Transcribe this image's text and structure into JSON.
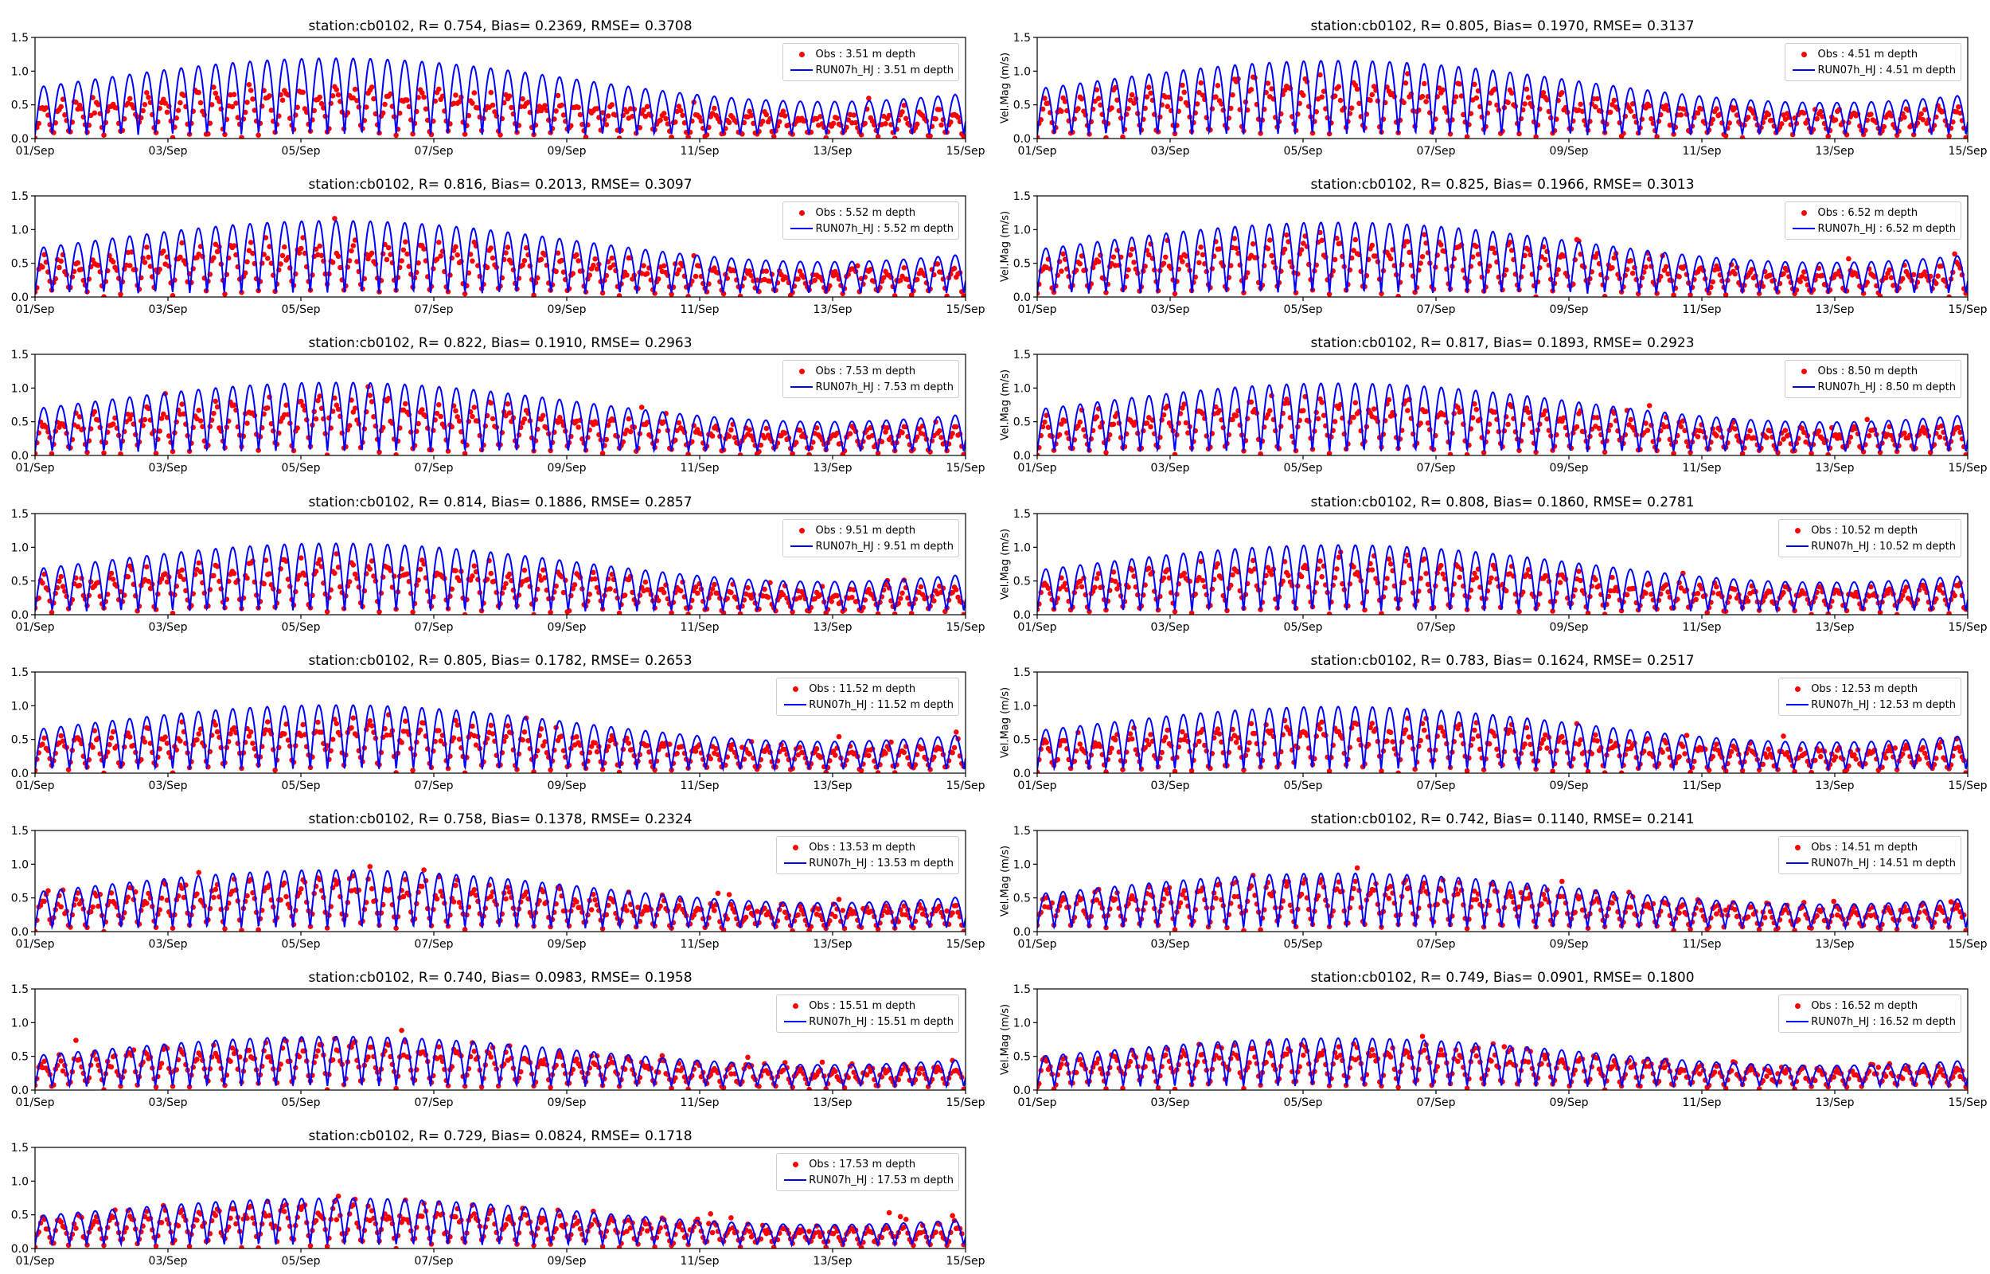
{
  "colors": {
    "obs": "#ff0000",
    "model": "#0000ff",
    "axis": "#000000"
  },
  "chart_data": [
    {
      "type": "scatter",
      "title": "station:cb0102, R= 0.754, Bias= 0.2369, RMSE= 0.3708",
      "ylabel": "",
      "ylim": [
        0,
        1.5
      ],
      "yticks": [
        "0.0",
        "0.5",
        "1.0",
        "1.5"
      ],
      "xticks": [
        "01/Sep",
        "03/Sep",
        "05/Sep",
        "07/Sep",
        "09/Sep",
        "11/Sep",
        "13/Sep",
        "15/Sep"
      ],
      "xlim": [
        "2000-09-01",
        "2000-09-15"
      ],
      "legend_position": "upper right",
      "series": [
        {
          "name": "Obs : 3.51 m depth",
          "kind": "points",
          "color": "#ff0000",
          "amp": 0.55
        },
        {
          "name": "RUN07h_HJ : 3.51 m depth",
          "kind": "line",
          "color": "#0000ff",
          "amp": 0.95
        }
      ]
    },
    {
      "type": "scatter",
      "title": "station:cb0102, R= 0.805, Bias= 0.1970, RMSE= 0.3137",
      "ylabel": "Vel.Mag (m/s)",
      "ylim": [
        0,
        1.5
      ],
      "yticks": [
        "0.0",
        "0.5",
        "1.0",
        "1.5"
      ],
      "xticks": [
        "01/Sep",
        "03/Sep",
        "05/Sep",
        "07/Sep",
        "09/Sep",
        "11/Sep",
        "13/Sep",
        "15/Sep"
      ],
      "xlim": [
        "2000-09-01",
        "2000-09-15"
      ],
      "legend_position": "upper right",
      "series": [
        {
          "name": "Obs : 4.51 m depth",
          "kind": "points",
          "color": "#ff0000",
          "amp": 0.62
        },
        {
          "name": "RUN07h_HJ : 4.51 m depth",
          "kind": "line",
          "color": "#0000ff",
          "amp": 0.92
        }
      ]
    },
    {
      "type": "scatter",
      "title": "station:cb0102, R= 0.816, Bias= 0.2013, RMSE= 0.3097",
      "ylabel": "",
      "ylim": [
        0,
        1.5
      ],
      "yticks": [
        "0.0",
        "0.5",
        "1.0",
        "1.5"
      ],
      "xticks": [
        "01/Sep",
        "03/Sep",
        "05/Sep",
        "07/Sep",
        "09/Sep",
        "11/Sep",
        "13/Sep",
        "15/Sep"
      ],
      "xlim": [
        "2000-09-01",
        "2000-09-15"
      ],
      "legend_position": "upper right",
      "series": [
        {
          "name": "Obs : 5.52 m depth",
          "kind": "points",
          "color": "#ff0000",
          "amp": 0.6
        },
        {
          "name": "RUN07h_HJ : 5.52 m depth",
          "kind": "line",
          "color": "#0000ff",
          "amp": 0.9
        }
      ]
    },
    {
      "type": "scatter",
      "title": "station:cb0102, R= 0.825, Bias= 0.1966, RMSE= 0.3013",
      "ylabel": "Vel.Mag (m/s)",
      "ylim": [
        0,
        1.5
      ],
      "yticks": [
        "0.0",
        "0.5",
        "1.0",
        "1.5"
      ],
      "xticks": [
        "01/Sep",
        "03/Sep",
        "05/Sep",
        "07/Sep",
        "09/Sep",
        "11/Sep",
        "13/Sep",
        "15/Sep"
      ],
      "xlim": [
        "2000-09-01",
        "2000-09-15"
      ],
      "legend_position": "upper right",
      "series": [
        {
          "name": "Obs : 6.52 m depth",
          "kind": "points",
          "color": "#ff0000",
          "amp": 0.62
        },
        {
          "name": "RUN07h_HJ : 6.52 m depth",
          "kind": "line",
          "color": "#0000ff",
          "amp": 0.88
        }
      ]
    },
    {
      "type": "scatter",
      "title": "station:cb0102, R= 0.822, Bias= 0.1910, RMSE= 0.2963",
      "ylabel": "",
      "ylim": [
        0,
        1.5
      ],
      "yticks": [
        "0.0",
        "0.5",
        "1.0",
        "1.5"
      ],
      "xticks": [
        "01/Sep",
        "03/Sep",
        "05/Sep",
        "07/Sep",
        "09/Sep",
        "11/Sep",
        "13/Sep",
        "15/Sep"
      ],
      "xlim": [
        "2000-09-01",
        "2000-09-15"
      ],
      "legend_position": "upper right",
      "series": [
        {
          "name": "Obs : 7.53 m depth",
          "kind": "points",
          "color": "#ff0000",
          "amp": 0.6
        },
        {
          "name": "RUN07h_HJ : 7.53 m depth",
          "kind": "line",
          "color": "#0000ff",
          "amp": 0.86
        }
      ]
    },
    {
      "type": "scatter",
      "title": "station:cb0102, R= 0.817, Bias= 0.1893, RMSE= 0.2923",
      "ylabel": "Vel.Mag (m/s)",
      "ylim": [
        0,
        1.5
      ],
      "yticks": [
        "0.0",
        "0.5",
        "1.0",
        "1.5"
      ],
      "xticks": [
        "01/Sep",
        "03/Sep",
        "05/Sep",
        "07/Sep",
        "09/Sep",
        "11/Sep",
        "13/Sep",
        "15/Sep"
      ],
      "xlim": [
        "2000-09-01",
        "2000-09-15"
      ],
      "legend_position": "upper right",
      "series": [
        {
          "name": "Obs : 8.50 m depth",
          "kind": "points",
          "color": "#ff0000",
          "amp": 0.6
        },
        {
          "name": "RUN07h_HJ : 8.50 m depth",
          "kind": "line",
          "color": "#0000ff",
          "amp": 0.85
        }
      ]
    },
    {
      "type": "scatter",
      "title": "station:cb0102, R= 0.814, Bias= 0.1886, RMSE= 0.2857",
      "ylabel": "",
      "ylim": [
        0,
        1.5
      ],
      "yticks": [
        "0.0",
        "0.5",
        "1.0",
        "1.5"
      ],
      "xticks": [
        "01/Sep",
        "03/Sep",
        "05/Sep",
        "07/Sep",
        "09/Sep",
        "11/Sep",
        "13/Sep",
        "15/Sep"
      ],
      "xlim": [
        "2000-09-01",
        "2000-09-15"
      ],
      "legend_position": "upper right",
      "series": [
        {
          "name": "Obs : 9.51 m depth",
          "kind": "points",
          "color": "#ff0000",
          "amp": 0.58
        },
        {
          "name": "RUN07h_HJ : 9.51 m depth",
          "kind": "line",
          "color": "#0000ff",
          "amp": 0.84
        }
      ]
    },
    {
      "type": "scatter",
      "title": "station:cb0102, R= 0.808, Bias= 0.1860, RMSE= 0.2781",
      "ylabel": "Vel.Mag (m/s)",
      "ylim": [
        0,
        1.5
      ],
      "yticks": [
        "0.0",
        "0.5",
        "1.0",
        "1.5"
      ],
      "xticks": [
        "01/Sep",
        "03/Sep",
        "05/Sep",
        "07/Sep",
        "09/Sep",
        "11/Sep",
        "13/Sep",
        "15/Sep"
      ],
      "xlim": [
        "2000-09-01",
        "2000-09-15"
      ],
      "legend_position": "upper right",
      "series": [
        {
          "name": "Obs : 10.52 m depth",
          "kind": "points",
          "color": "#ff0000",
          "amp": 0.58
        },
        {
          "name": "RUN07h_HJ : 10.52 m depth",
          "kind": "line",
          "color": "#0000ff",
          "amp": 0.82
        }
      ]
    },
    {
      "type": "scatter",
      "title": "station:cb0102, R= 0.805, Bias= 0.1782, RMSE= 0.2653",
      "ylabel": "",
      "ylim": [
        0,
        1.5
      ],
      "yticks": [
        "0.0",
        "0.5",
        "1.0",
        "1.5"
      ],
      "xticks": [
        "01/Sep",
        "03/Sep",
        "05/Sep",
        "07/Sep",
        "09/Sep",
        "11/Sep",
        "13/Sep",
        "15/Sep"
      ],
      "xlim": [
        "2000-09-01",
        "2000-09-15"
      ],
      "legend_position": "upper right",
      "series": [
        {
          "name": "Obs : 11.52 m depth",
          "kind": "points",
          "color": "#ff0000",
          "amp": 0.57
        },
        {
          "name": "RUN07h_HJ : 11.52 m depth",
          "kind": "line",
          "color": "#0000ff",
          "amp": 0.8
        }
      ]
    },
    {
      "type": "scatter",
      "title": "station:cb0102, R= 0.783, Bias= 0.1624, RMSE= 0.2517",
      "ylabel": "Vel.Mag (m/s)",
      "ylim": [
        0,
        1.5
      ],
      "yticks": [
        "0.0",
        "0.5",
        "1.0",
        "1.5"
      ],
      "xticks": [
        "01/Sep",
        "03/Sep",
        "05/Sep",
        "07/Sep",
        "09/Sep",
        "11/Sep",
        "13/Sep",
        "15/Sep"
      ],
      "xlim": [
        "2000-09-01",
        "2000-09-15"
      ],
      "legend_position": "upper right",
      "series": [
        {
          "name": "Obs : 12.53 m depth",
          "kind": "points",
          "color": "#ff0000",
          "amp": 0.55
        },
        {
          "name": "RUN07h_HJ : 12.53 m depth",
          "kind": "line",
          "color": "#0000ff",
          "amp": 0.78
        }
      ]
    },
    {
      "type": "scatter",
      "title": "station:cb0102, R= 0.758, Bias= 0.1378, RMSE= 0.2324",
      "ylabel": "",
      "ylim": [
        0,
        1.5
      ],
      "yticks": [
        "0.0",
        "0.5",
        "1.0",
        "1.5"
      ],
      "xticks": [
        "01/Sep",
        "03/Sep",
        "05/Sep",
        "07/Sep",
        "09/Sep",
        "11/Sep",
        "13/Sep",
        "15/Sep"
      ],
      "xlim": [
        "2000-09-01",
        "2000-09-15"
      ],
      "legend_position": "upper right",
      "series": [
        {
          "name": "Obs : 13.53 m depth",
          "kind": "points",
          "color": "#ff0000",
          "amp": 0.55
        },
        {
          "name": "RUN07h_HJ : 13.53 m depth",
          "kind": "line",
          "color": "#0000ff",
          "amp": 0.72
        }
      ]
    },
    {
      "type": "scatter",
      "title": "station:cb0102, R= 0.742, Bias= 0.1140, RMSE= 0.2141",
      "ylabel": "Vel.Mag (m/s)",
      "ylim": [
        0,
        1.5
      ],
      "yticks": [
        "0.0",
        "0.5",
        "1.0",
        "1.5"
      ],
      "xticks": [
        "01/Sep",
        "03/Sep",
        "05/Sep",
        "07/Sep",
        "09/Sep",
        "11/Sep",
        "13/Sep",
        "15/Sep"
      ],
      "xlim": [
        "2000-09-01",
        "2000-09-15"
      ],
      "legend_position": "upper right",
      "series": [
        {
          "name": "Obs : 14.51 m depth",
          "kind": "points",
          "color": "#ff0000",
          "amp": 0.55
        },
        {
          "name": "RUN07h_HJ : 14.51 m depth",
          "kind": "line",
          "color": "#0000ff",
          "amp": 0.68
        }
      ]
    },
    {
      "type": "scatter",
      "title": "station:cb0102, R= 0.740, Bias= 0.0983, RMSE= 0.1958",
      "ylabel": "",
      "ylim": [
        0,
        1.5
      ],
      "yticks": [
        "0.0",
        "0.5",
        "1.0",
        "1.5"
      ],
      "xticks": [
        "01/Sep",
        "03/Sep",
        "05/Sep",
        "07/Sep",
        "09/Sep",
        "11/Sep",
        "13/Sep",
        "15/Sep"
      ],
      "xlim": [
        "2000-09-01",
        "2000-09-15"
      ],
      "legend_position": "upper right",
      "series": [
        {
          "name": "Obs : 15.51 m depth",
          "kind": "points",
          "color": "#ff0000",
          "amp": 0.5
        },
        {
          "name": "RUN07h_HJ : 15.51 m depth",
          "kind": "line",
          "color": "#0000ff",
          "amp": 0.62
        }
      ]
    },
    {
      "type": "scatter",
      "title": "station:cb0102, R= 0.749, Bias= 0.0901, RMSE= 0.1800",
      "ylabel": "Vel.Mag (m/s)",
      "ylim": [
        0,
        1.5
      ],
      "yticks": [
        "0.0",
        "0.5",
        "1.0",
        "1.5"
      ],
      "xticks": [
        "01/Sep",
        "03/Sep",
        "05/Sep",
        "07/Sep",
        "09/Sep",
        "11/Sep",
        "13/Sep",
        "15/Sep"
      ],
      "xlim": [
        "2000-09-01",
        "2000-09-15"
      ],
      "legend_position": "upper right",
      "series": [
        {
          "name": "Obs : 16.52 m depth",
          "kind": "points",
          "color": "#ff0000",
          "amp": 0.48
        },
        {
          "name": "RUN07h_HJ : 16.52 m depth",
          "kind": "line",
          "color": "#0000ff",
          "amp": 0.6
        }
      ]
    },
    {
      "type": "scatter",
      "title": "station:cb0102, R= 0.729, Bias= 0.0824, RMSE= 0.1718",
      "ylabel": "",
      "ylim": [
        0,
        1.5
      ],
      "yticks": [
        "0.0",
        "0.5",
        "1.0",
        "1.5"
      ],
      "xticks": [
        "01/Sep",
        "03/Sep",
        "05/Sep",
        "07/Sep",
        "09/Sep",
        "11/Sep",
        "13/Sep",
        "15/Sep"
      ],
      "xlim": [
        "2000-09-01",
        "2000-09-15"
      ],
      "legend_position": "upper right",
      "series": [
        {
          "name": "Obs : 17.53 m depth",
          "kind": "points",
          "color": "#ff0000",
          "amp": 0.46
        },
        {
          "name": "RUN07h_HJ : 17.53 m depth",
          "kind": "line",
          "color": "#0000ff",
          "amp": 0.58
        }
      ]
    }
  ]
}
